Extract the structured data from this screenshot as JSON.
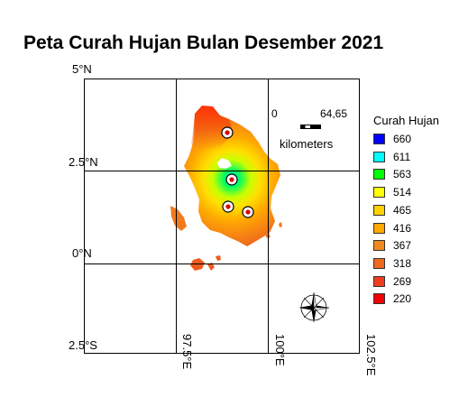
{
  "title": "Peta Curah Hujan Bulan Desember 2021",
  "latitude_labels": [
    "5°N",
    "2.5°N",
    "0°N",
    "2.5°S"
  ],
  "longitude_labels": [
    "97.5°E",
    "100°E",
    "102.5°E"
  ],
  "scale_bar": {
    "start": "0",
    "end": "64,65",
    "unit": "kilometers"
  },
  "legend": {
    "title": "Curah Hujan",
    "items": [
      {
        "label": "660",
        "color": "#0000ff"
      },
      {
        "label": "611",
        "color": "#00ffff"
      },
      {
        "label": "563",
        "color": "#00ff00"
      },
      {
        "label": "514",
        "color": "#ffff00"
      },
      {
        "label": "465",
        "color": "#ffd000"
      },
      {
        "label": "416",
        "color": "#ffa800"
      },
      {
        "label": "367",
        "color": "#f08a1e"
      },
      {
        "label": "318",
        "color": "#f06a1e"
      },
      {
        "label": "269",
        "color": "#f03c1e"
      },
      {
        "label": "220",
        "color": "#f00000"
      }
    ]
  },
  "compass_icon": "north-arrow-compass-rose-icon",
  "station_icon": "rain-station-marker-icon"
}
